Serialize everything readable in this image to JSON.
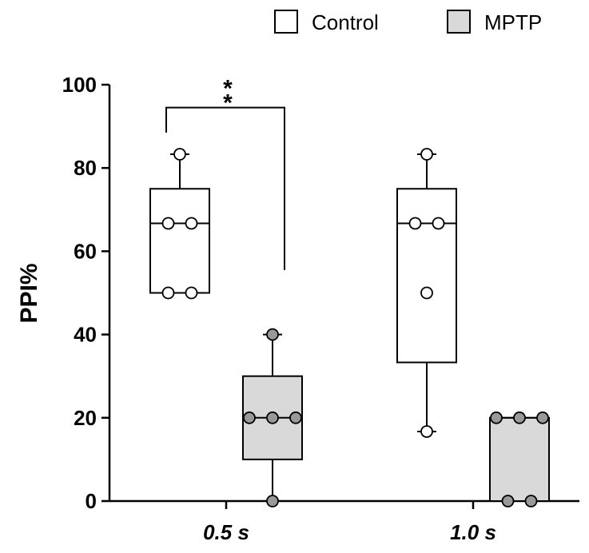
{
  "chart_data": {
    "type": "box",
    "ylabel": "PPI%",
    "xlabel": "",
    "ylim": [
      0,
      100
    ],
    "yticks": [
      0,
      20,
      40,
      60,
      80,
      100
    ],
    "categories": [
      "0.5 s",
      "1.0 s"
    ],
    "legend": {
      "position": "top-right"
    },
    "series": [
      {
        "name": "Control",
        "fill": "#ffffff",
        "point_fill": "#ffffff",
        "groups": [
          {
            "category": "0.5 s",
            "min": 50,
            "q1": 50,
            "median": 66.7,
            "q3": 75,
            "max": 83.3,
            "points": [
              83.3,
              66.7,
              66.7,
              50,
              50
            ]
          },
          {
            "category": "1.0 s",
            "min": 16.7,
            "q1": 33.3,
            "median": 66.7,
            "q3": 75,
            "max": 83.3,
            "points": [
              83.3,
              66.7,
              66.7,
              50,
              16.7
            ]
          }
        ]
      },
      {
        "name": "MPTP",
        "fill": "#d9d9d9",
        "point_fill": "#999999",
        "groups": [
          {
            "category": "0.5 s",
            "min": 0,
            "q1": 10,
            "median": 20,
            "q3": 30,
            "max": 40,
            "points": [
              40,
              20,
              20,
              20,
              0
            ]
          },
          {
            "category": "1.0 s",
            "min": 0,
            "q1": 0,
            "median": 20,
            "q3": 20,
            "max": 20,
            "points": [
              20,
              20,
              20,
              0,
              0
            ]
          }
        ]
      }
    ],
    "annotations": [
      {
        "text": "**",
        "between": "Control 0.5 s vs MPTP 0.5 s"
      }
    ]
  }
}
